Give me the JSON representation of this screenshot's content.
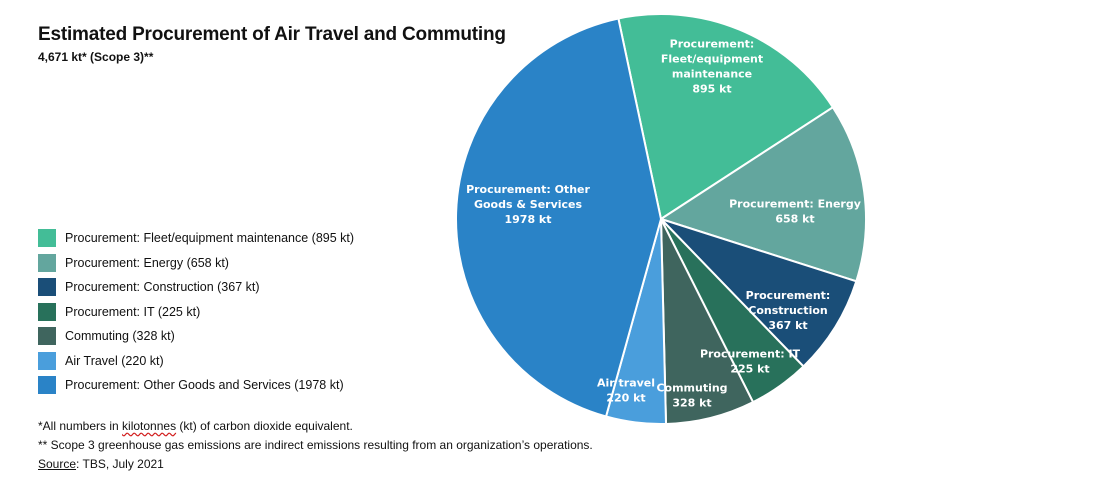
{
  "chart_data": {
    "type": "pie",
    "title": "Estimated Procurement of Air Travel and Commuting",
    "subtitle": "4,671 kt* (Scope 3)**",
    "slices": [
      {
        "name": "Procurement: Fleet/equipment maintenance",
        "value": 895,
        "color": "#43bd97",
        "label_lines": [
          "Procurement:",
          "Fleet/equipment",
          "maintenance",
          "895 kt"
        ],
        "label_color": "#ffffff"
      },
      {
        "name": "Procurement: Energy",
        "value": 658,
        "color": "#63a69e",
        "label_lines": [
          "Procurement: Energy",
          "658 kt"
        ],
        "label_color": "#ffffff"
      },
      {
        "name": "Procurement: Construction",
        "value": 367,
        "color": "#1a4e78",
        "label_lines": [
          "Procurement:",
          "Construction",
          "367 kt"
        ],
        "label_color": "#ffffff"
      },
      {
        "name": "Procurement: IT",
        "value": 225,
        "color": "#28715b",
        "label_lines": [
          "Procurement: IT",
          "225 kt"
        ],
        "label_color": "#ffffff"
      },
      {
        "name": "Commuting",
        "value": 328,
        "color": "#3f655e",
        "label_lines": [
          "Commuting",
          "328 kt"
        ],
        "label_color": "#ffffff"
      },
      {
        "name": "Air Travel",
        "value": 220,
        "color": "#4a9edc",
        "label_lines": [
          "Air travel",
          "220 kt"
        ],
        "label_color": "#ffffff"
      },
      {
        "name": "Procurement: Other Goods and Services",
        "value": 1978,
        "color": "#2a83c7",
        "label_lines": [
          "Procurement: Other",
          "Goods & Services",
          "1978 kt"
        ],
        "label_color": "#ffffff"
      }
    ]
  },
  "legend": {
    "items": [
      {
        "label": "Procurement: Fleet/equipment maintenance (895 kt)",
        "color": "#43bd97"
      },
      {
        "label": "Procurement: Energy (658 kt)",
        "color": "#63a69e"
      },
      {
        "label": "Procurement: Construction (367 kt)",
        "color": "#1a4e78"
      },
      {
        "label": "Procurement: IT (225 kt)",
        "color": "#28715b"
      },
      {
        "label": "Commuting (328 kt)",
        "color": "#3f655e"
      },
      {
        "label": "Air Travel (220 kt)",
        "color": "#4a9edc"
      },
      {
        "label": "Procurement: Other Goods and Services (1978 kt)",
        "color": "#2a83c7"
      }
    ]
  },
  "footnotes": {
    "note1_prefix": "*All numbers in ",
    "note1_word": "kilotonnes",
    "note1_suffix": " (kt) of carbon dioxide equivalent.",
    "note2": "** Scope 3 greenhouse gas emissions are indirect emissions resulting from an organization’s operations.",
    "source_label": "Source",
    "source_text": ": TBS, July 2021"
  }
}
